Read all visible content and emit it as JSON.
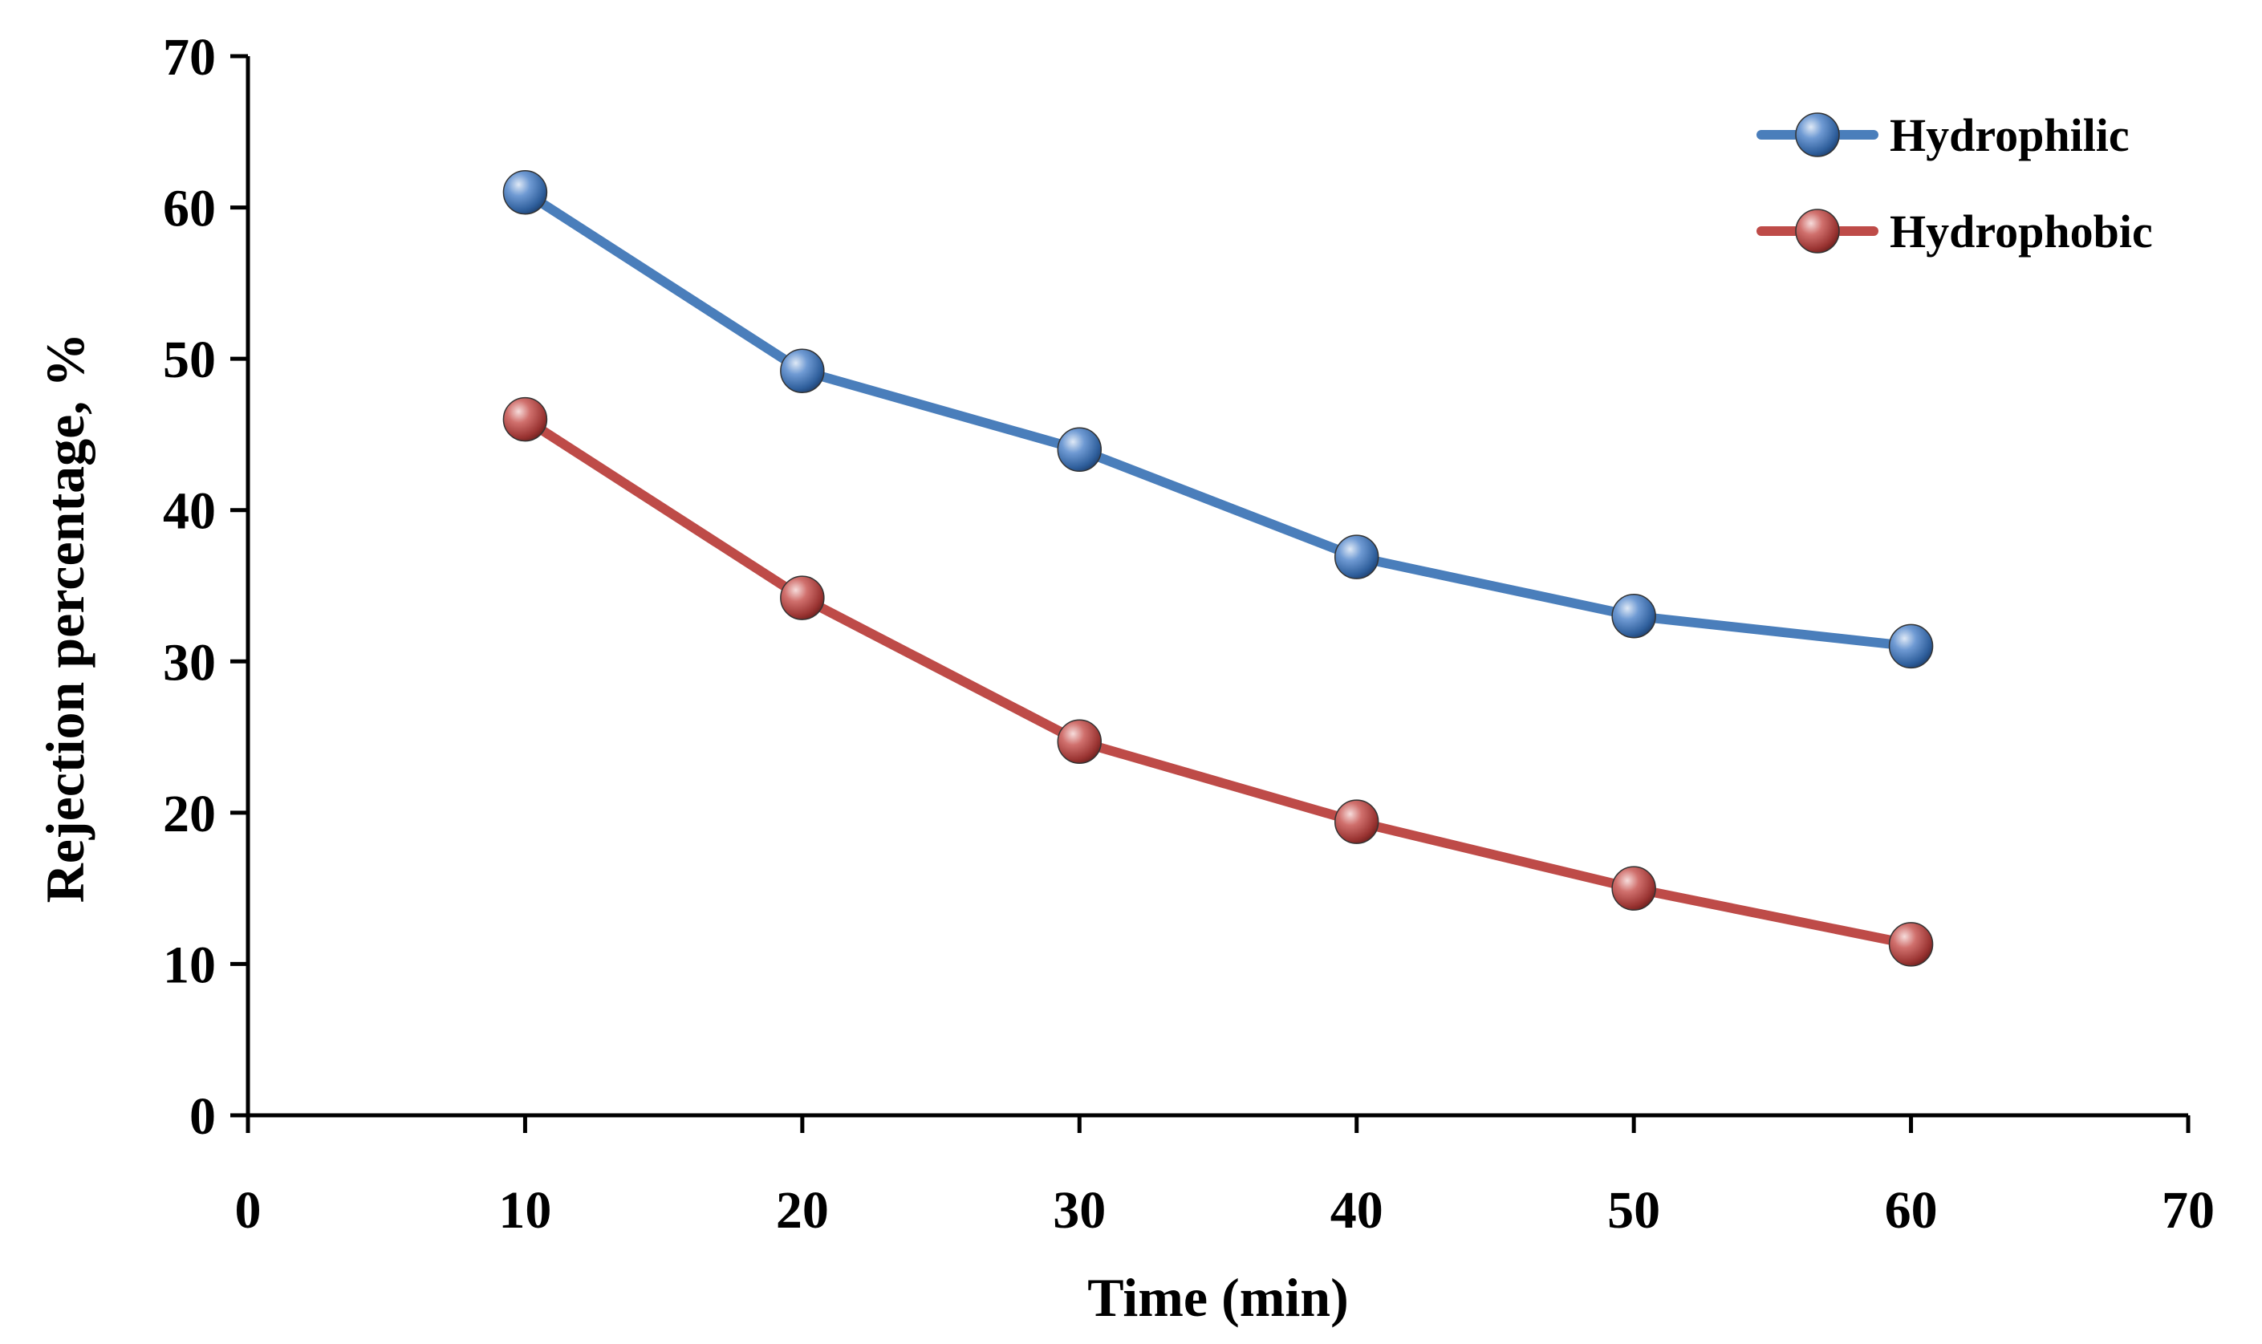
{
  "chart_data": {
    "type": "line",
    "title": "",
    "xlabel": "Time (min)",
    "ylabel": "Rejection percentage,  %",
    "xlim": [
      0,
      70
    ],
    "ylim": [
      0,
      70
    ],
    "xticks": [
      0,
      10,
      20,
      30,
      40,
      50,
      60,
      70
    ],
    "yticks": [
      0,
      10,
      20,
      30,
      40,
      50,
      60,
      70
    ],
    "xtick_labels": [
      "0",
      "10",
      "20",
      "30",
      "40",
      "50",
      "60",
      "70"
    ],
    "ytick_labels": [
      "0",
      "10",
      "20",
      "30",
      "40",
      "50",
      "60",
      "70"
    ],
    "grid": false,
    "legend_position": "top-right",
    "series": [
      {
        "name": "Hydrophilic",
        "color": "#4a7ebb",
        "x": [
          10,
          20,
          30,
          40,
          50,
          60
        ],
        "y": [
          61,
          49.2,
          44,
          36.9,
          33,
          31
        ]
      },
      {
        "name": "Hydrophobic",
        "color": "#be4b48",
        "x": [
          10,
          20,
          30,
          40,
          50,
          60
        ],
        "y": [
          46,
          34.2,
          24.7,
          19.4,
          15,
          11.3
        ]
      }
    ]
  }
}
